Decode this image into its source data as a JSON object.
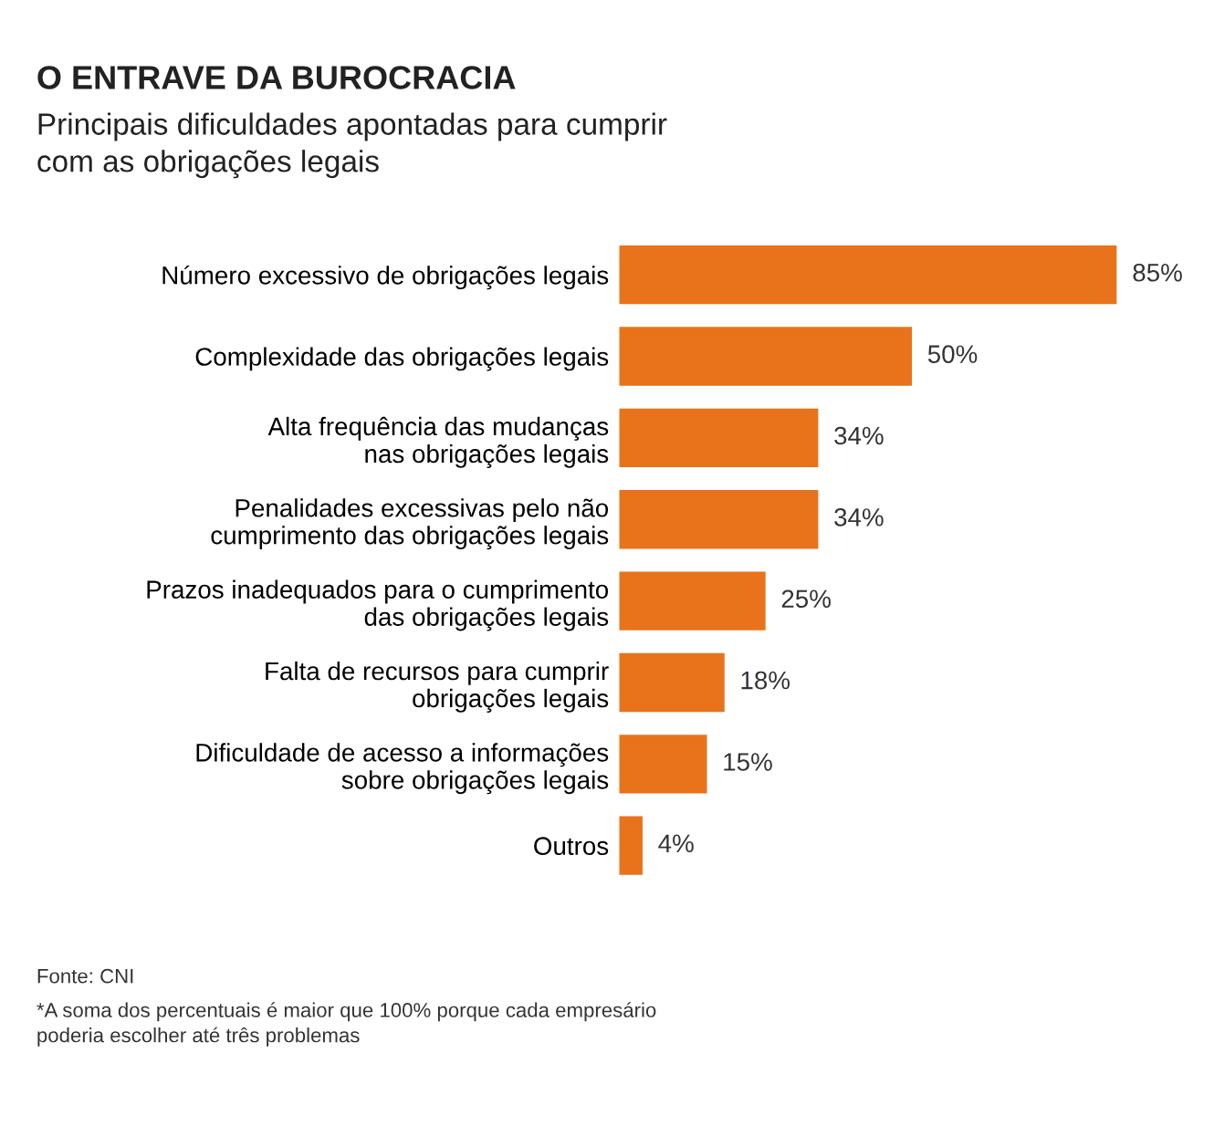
{
  "chart_data": {
    "type": "bar",
    "orientation": "horizontal",
    "title": "O ENTRAVE DA BUROCRACIA",
    "subtitle": "Principais dificuldades apontadas para cumprir\ncom as obrigações legais",
    "categories": [
      "Número excessivo de obrigações legais",
      "Complexidade das obrigações legais",
      "Alta frequência das mudanças\nnas obrigações legais",
      "Penalidades excessivas pelo não\ncumprimento das obrigações legais",
      "Prazos inadequados para o cumprimento\ndas obrigações legais",
      "Falta de recursos para cumprir\nobrigações legais",
      "Dificuldade de acesso a informações\nsobre obrigações legais",
      "Outros"
    ],
    "values": [
      85,
      50,
      34,
      34,
      25,
      18,
      15,
      4
    ],
    "value_labels": [
      "85%",
      "50%",
      "34%",
      "34%",
      "25%",
      "18%",
      "15%",
      "4%"
    ],
    "color": "#e8731a",
    "grid": false,
    "legend": false,
    "annotations": [
      "Fonte: CNI",
      "*A soma dos percentuais é maior que 100% porque cada empresário\npoderia escolher até três problemas"
    ]
  }
}
